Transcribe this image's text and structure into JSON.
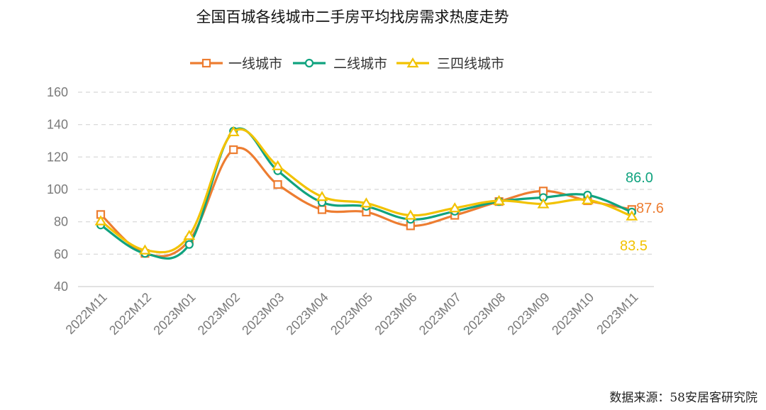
{
  "chart_data": {
    "type": "line",
    "title": "全国百城各线城市二手房平均找房需求热度走势",
    "source": "数据来源：58安居客研究院",
    "categories": [
      "2022M11",
      "2022M12",
      "2023M01",
      "2023M02",
      "2023M03",
      "2023M04",
      "2023M05",
      "2023M06",
      "2023M07",
      "2023M08",
      "2023M09",
      "2023M10",
      "2023M11"
    ],
    "ylim": [
      40,
      160
    ],
    "yticks": [
      40,
      60,
      80,
      100,
      120,
      140,
      160
    ],
    "grid": true,
    "legend_position": "top",
    "series": [
      {
        "name": "一线城市",
        "color": "#ED7D31",
        "marker": "square",
        "values": [
          84.5,
          60.5,
          68.5,
          124.5,
          103,
          87.5,
          86,
          77.5,
          84,
          92.5,
          99,
          93,
          87.6
        ],
        "end_label": "87.6"
      },
      {
        "name": "二线城市",
        "color": "#10A37F",
        "marker": "circle",
        "values": [
          78,
          60.5,
          66,
          136,
          111.5,
          92,
          89.5,
          81.5,
          86.5,
          92.5,
          95,
          96.5,
          86.0
        ],
        "end_label": "86.0"
      },
      {
        "name": "三四线城市",
        "color": "#F2C200",
        "marker": "triangle",
        "values": [
          80.5,
          62.5,
          71.5,
          135.5,
          114.5,
          95.5,
          91.5,
          84,
          88.5,
          93,
          91,
          93.5,
          83.5
        ],
        "end_label": "83.5"
      }
    ]
  }
}
